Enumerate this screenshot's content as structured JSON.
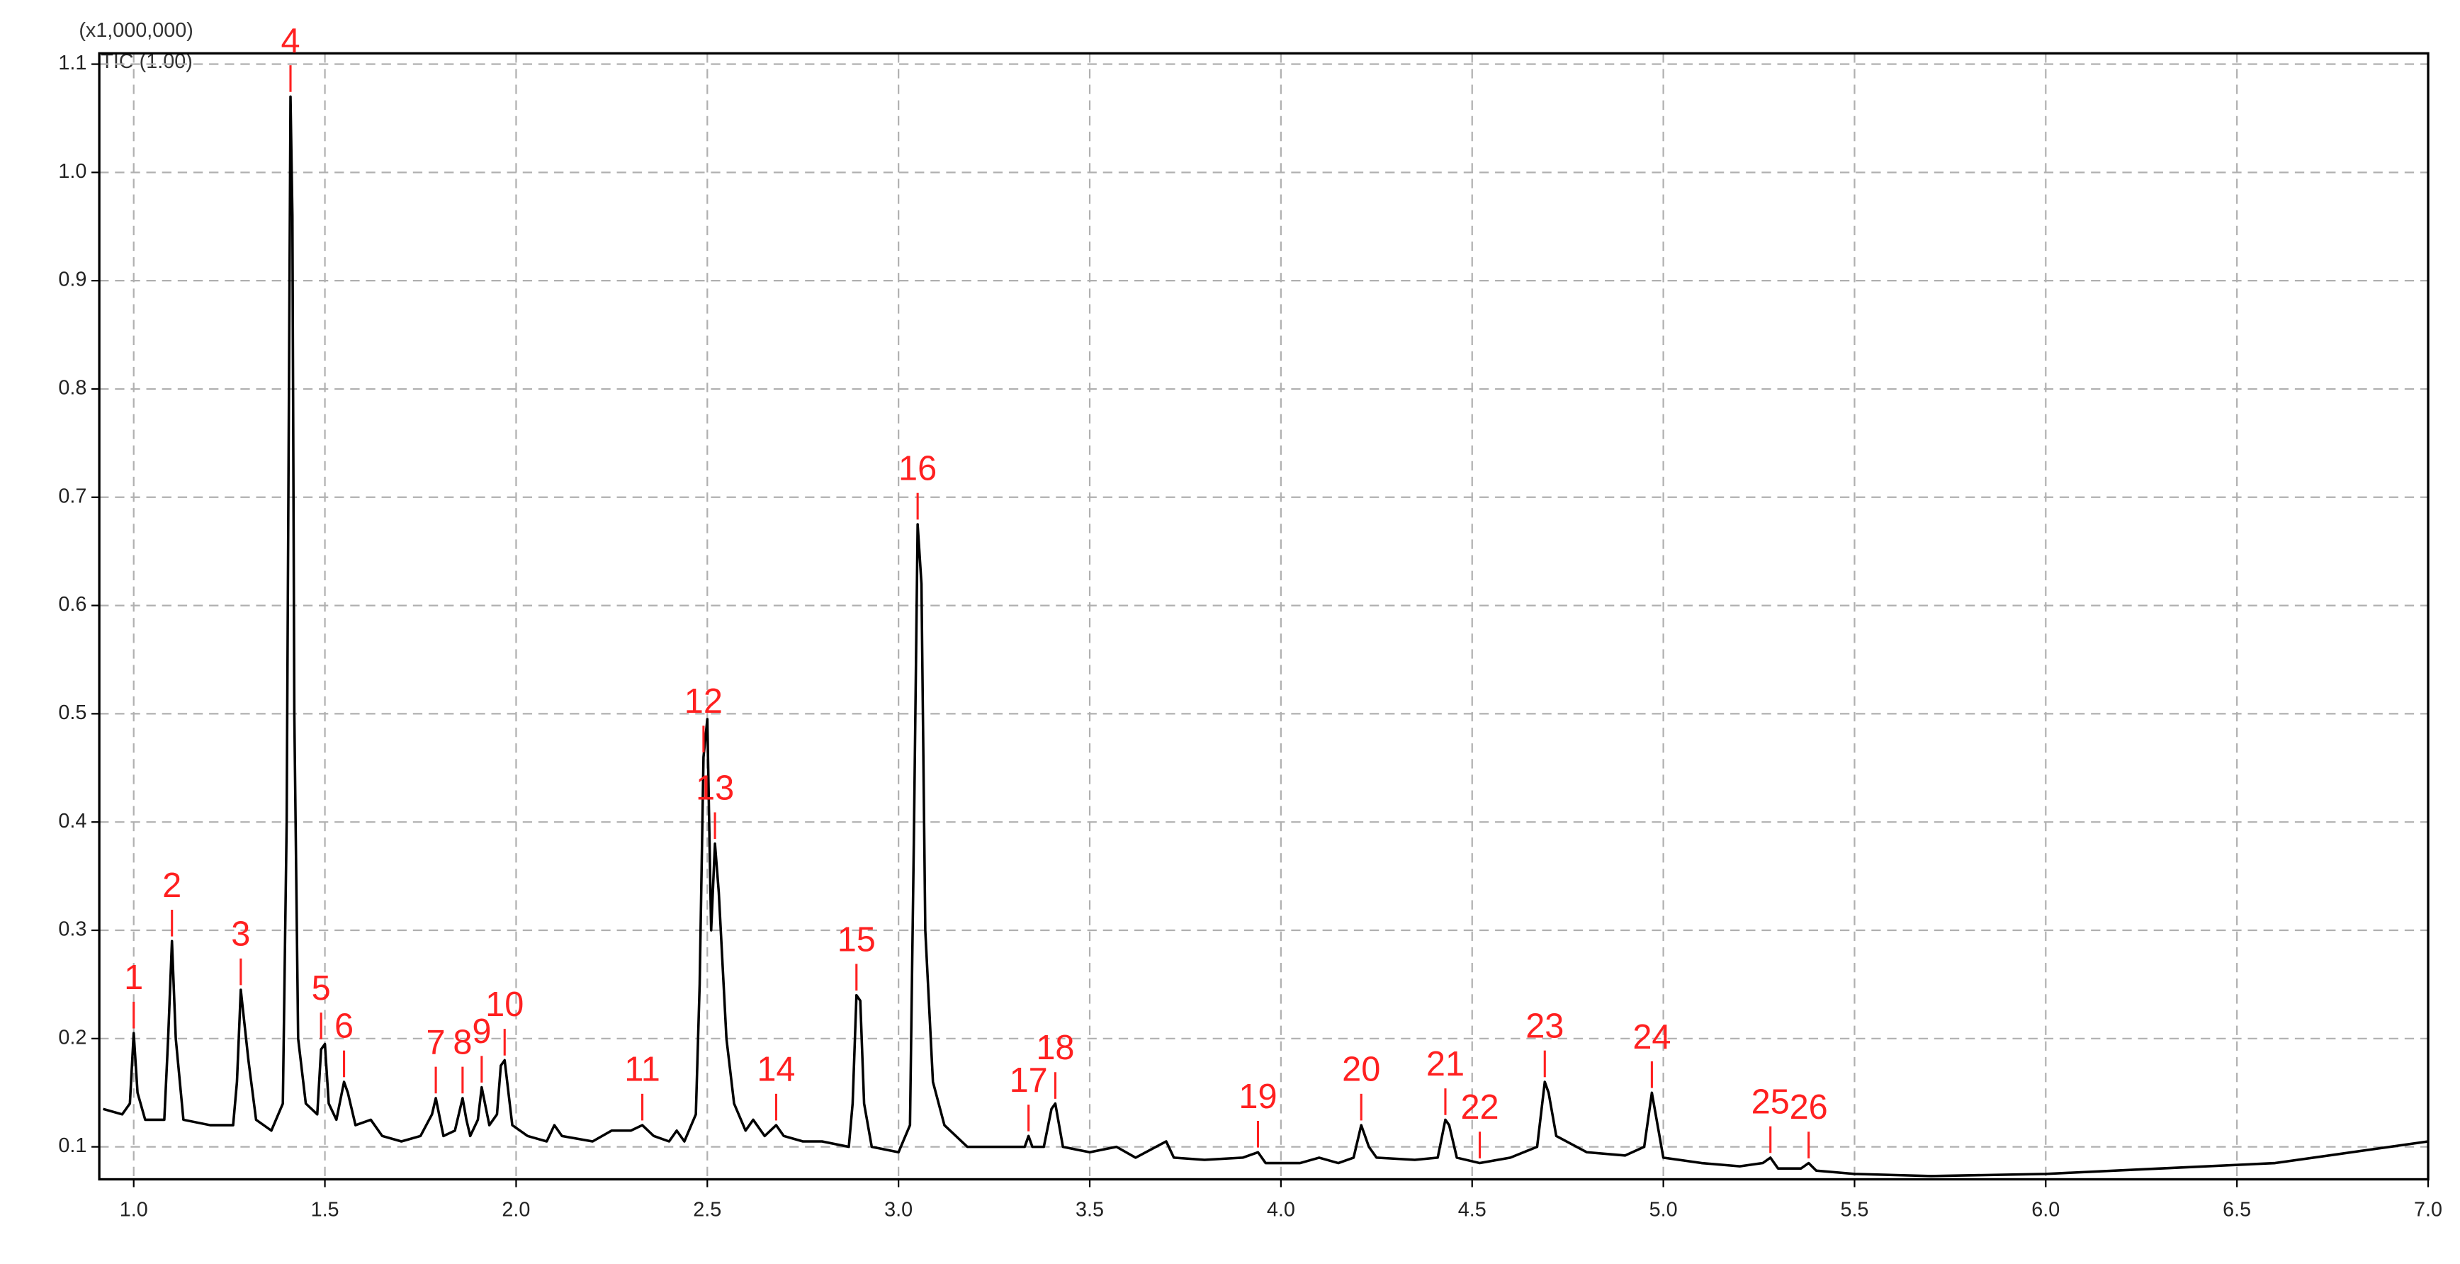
{
  "chart_data": {
    "type": "line",
    "multiplier": "(x1,000,000)",
    "trace_label": "TIC (1.00)",
    "x": [
      0.92,
      0.97,
      0.99,
      1.0,
      1.01,
      1.03,
      1.08,
      1.09,
      1.1,
      1.11,
      1.13,
      1.2,
      1.26,
      1.27,
      1.28,
      1.3,
      1.32,
      1.36,
      1.39,
      1.4,
      1.41,
      1.415,
      1.42,
      1.43,
      1.45,
      1.48,
      1.49,
      1.5,
      1.51,
      1.53,
      1.55,
      1.56,
      1.58,
      1.62,
      1.65,
      1.7,
      1.75,
      1.78,
      1.79,
      1.81,
      1.84,
      1.86,
      1.87,
      1.88,
      1.9,
      1.91,
      1.93,
      1.95,
      1.96,
      1.97,
      1.99,
      2.03,
      2.08,
      2.1,
      2.12,
      2.2,
      2.25,
      2.3,
      2.33,
      2.36,
      2.4,
      2.42,
      2.44,
      2.47,
      2.48,
      2.49,
      2.5,
      2.51,
      2.52,
      2.53,
      2.55,
      2.57,
      2.6,
      2.62,
      2.65,
      2.68,
      2.7,
      2.75,
      2.8,
      2.87,
      2.88,
      2.89,
      2.9,
      2.91,
      2.93,
      3.0,
      3.03,
      3.04,
      3.05,
      3.06,
      3.07,
      3.09,
      3.12,
      3.18,
      3.3,
      3.33,
      3.34,
      3.35,
      3.38,
      3.4,
      3.41,
      3.43,
      3.5,
      3.57,
      3.62,
      3.7,
      3.72,
      3.8,
      3.9,
      3.94,
      3.96,
      4.05,
      4.1,
      4.15,
      4.19,
      4.21,
      4.23,
      4.25,
      4.35,
      4.41,
      4.43,
      4.44,
      4.46,
      4.52,
      4.6,
      4.67,
      4.69,
      4.7,
      4.72,
      4.8,
      4.9,
      4.95,
      4.97,
      4.98,
      5.0,
      5.1,
      5.2,
      5.26,
      5.28,
      5.3,
      5.36,
      5.38,
      5.4,
      5.5,
      5.7,
      6.0,
      6.3,
      6.6,
      6.8,
      7.0
    ],
    "series": [
      {
        "name": "TIC",
        "color": "#000000",
        "values": [
          0.135,
          0.13,
          0.14,
          0.205,
          0.15,
          0.125,
          0.125,
          0.2,
          0.29,
          0.2,
          0.125,
          0.12,
          0.12,
          0.16,
          0.245,
          0.18,
          0.125,
          0.115,
          0.14,
          0.4,
          1.07,
          0.96,
          0.5,
          0.2,
          0.14,
          0.13,
          0.19,
          0.195,
          0.14,
          0.125,
          0.16,
          0.15,
          0.12,
          0.125,
          0.11,
          0.105,
          0.11,
          0.13,
          0.145,
          0.11,
          0.115,
          0.145,
          0.125,
          0.11,
          0.125,
          0.155,
          0.12,
          0.13,
          0.175,
          0.18,
          0.12,
          0.11,
          0.105,
          0.12,
          0.11,
          0.105,
          0.115,
          0.115,
          0.12,
          0.11,
          0.105,
          0.115,
          0.105,
          0.13,
          0.25,
          0.46,
          0.495,
          0.3,
          0.38,
          0.335,
          0.2,
          0.14,
          0.115,
          0.125,
          0.11,
          0.12,
          0.11,
          0.105,
          0.105,
          0.1,
          0.14,
          0.24,
          0.235,
          0.14,
          0.1,
          0.095,
          0.12,
          0.38,
          0.675,
          0.62,
          0.3,
          0.16,
          0.12,
          0.1,
          0.1,
          0.1,
          0.11,
          0.1,
          0.1,
          0.135,
          0.14,
          0.1,
          0.095,
          0.1,
          0.09,
          0.105,
          0.09,
          0.088,
          0.09,
          0.095,
          0.085,
          0.085,
          0.09,
          0.085,
          0.09,
          0.12,
          0.1,
          0.09,
          0.088,
          0.09,
          0.125,
          0.12,
          0.09,
          0.085,
          0.09,
          0.1,
          0.16,
          0.15,
          0.11,
          0.095,
          0.092,
          0.1,
          0.15,
          0.13,
          0.09,
          0.085,
          0.082,
          0.085,
          0.09,
          0.08,
          0.08,
          0.085,
          0.078,
          0.075,
          0.073,
          0.075,
          0.08,
          0.085,
          0.095,
          0.105
        ]
      }
    ],
    "annotations": [
      {
        "text": "1",
        "x": 1.0,
        "y": 0.205
      },
      {
        "text": "2",
        "x": 1.1,
        "y": 0.29
      },
      {
        "text": "3",
        "x": 1.28,
        "y": 0.245
      },
      {
        "text": "4",
        "x": 1.41,
        "y": 1.07
      },
      {
        "text": "5",
        "x": 1.49,
        "y": 0.195
      },
      {
        "text": "6",
        "x": 1.55,
        "y": 0.16
      },
      {
        "text": "7",
        "x": 1.79,
        "y": 0.145
      },
      {
        "text": "8",
        "x": 1.86,
        "y": 0.145
      },
      {
        "text": "9",
        "x": 1.91,
        "y": 0.155
      },
      {
        "text": "10",
        "x": 1.97,
        "y": 0.18
      },
      {
        "text": "11",
        "x": 2.33,
        "y": 0.12
      },
      {
        "text": "12",
        "x": 2.49,
        "y": 0.46
      },
      {
        "text": "13",
        "x": 2.52,
        "y": 0.38
      },
      {
        "text": "14",
        "x": 2.68,
        "y": 0.12
      },
      {
        "text": "15",
        "x": 2.89,
        "y": 0.24
      },
      {
        "text": "16",
        "x": 3.05,
        "y": 0.675
      },
      {
        "text": "17",
        "x": 3.34,
        "y": 0.11
      },
      {
        "text": "18",
        "x": 3.41,
        "y": 0.14
      },
      {
        "text": "19",
        "x": 3.94,
        "y": 0.095
      },
      {
        "text": "20",
        "x": 4.21,
        "y": 0.12
      },
      {
        "text": "21",
        "x": 4.43,
        "y": 0.125
      },
      {
        "text": "22",
        "x": 4.52,
        "y": 0.085
      },
      {
        "text": "23",
        "x": 4.69,
        "y": 0.16
      },
      {
        "text": "24",
        "x": 4.97,
        "y": 0.15
      },
      {
        "text": "25",
        "x": 5.28,
        "y": 0.09
      },
      {
        "text": "26",
        "x": 5.38,
        "y": 0.085
      }
    ],
    "annotation_color": "#ff2020",
    "xlim": [
      0.91,
      7.0
    ],
    "ylim": [
      0.07,
      1.11
    ],
    "xticks": [
      {
        "value": 1,
        "label": "1.0"
      },
      1.5,
      {
        "value": 2,
        "label": "2.0"
      },
      2.5,
      {
        "value": 3,
        "label": "3.0"
      },
      3.5,
      {
        "value": 4,
        "label": "4.0"
      },
      4.5,
      {
        "value": 5,
        "label": "5.0"
      },
      5.5,
      {
        "value": 6,
        "label": "6.0"
      },
      6.5,
      {
        "value": 7,
        "label": "7.0"
      }
    ],
    "yticks": [
      0.1,
      0.2,
      0.3,
      0.4,
      0.5,
      0.6,
      0.7,
      0.8,
      0.9,
      {
        "value": 1,
        "label": "1.0"
      },
      1.1
    ],
    "grid": true
  }
}
